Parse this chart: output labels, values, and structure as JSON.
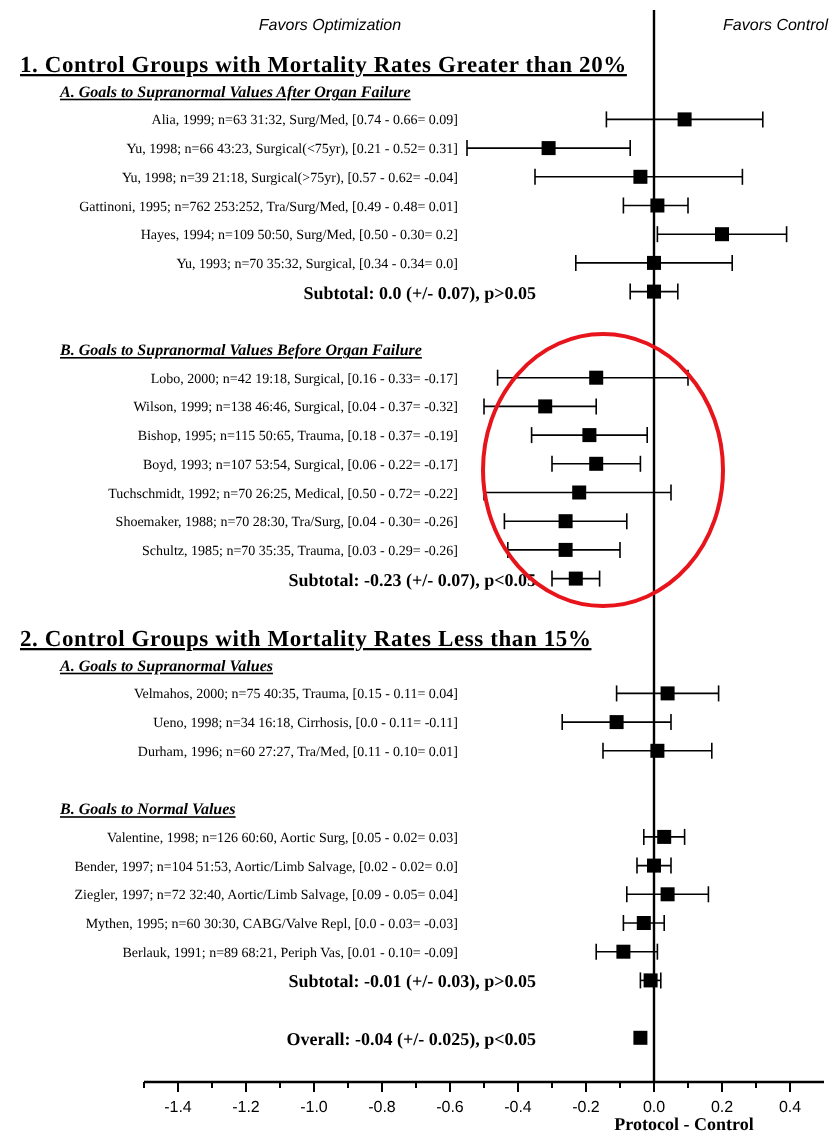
{
  "chart_data": {
    "type": "scatter",
    "orientation": "horizontal",
    "marker": "square",
    "annotations": [
      "Favors Optimization",
      "Favors Control"
    ],
    "xlabel": "Protocol - Control",
    "categories": [
      "1. Control Groups with Mortality Rates Greater than 20%",
      "A. Goals to Supranormal Values After Organ Failure",
      "Alia, 1999; n=63 31:32, Surg/Med, [0.74 - 0.66= 0.09]",
      "Yu, 1998; n=66 43:23, Surgical(<75yr), [0.21 - 0.52= 0.31]",
      "Yu, 1998; n=39 21:18, Surgical(>75yr), [0.57 - 0.62= -0.04]",
      "Gattinoni, 1995; n=762 253:252, Tra/Surg/Med, [0.49 - 0.48= 0.01]",
      "Hayes, 1994; n=109 50:50, Surg/Med, [0.50 - 0.30= 0.2]",
      "Yu, 1993; n=70 35:32, Surgical, [0.34 - 0.34= 0.0]",
      "Subtotal: 0.0 (+/- 0.07), p>0.05",
      null,
      "B. Goals to Supranormal Values Before Organ Failure",
      "Lobo, 2000; n=42 19:18, Surgical, [0.16 - 0.33= -0.17]",
      "Wilson, 1999; n=138 46:46, Surgical, [0.04 - 0.37= -0.32]",
      "Bishop, 1995; n=115 50:65, Trauma, [0.18 - 0.37= -0.19]",
      "Boyd, 1993; n=107 53:54, Surgical, [0.06 - 0.22= -0.17]",
      "Tuchschmidt, 1992; n=70 26:25, Medical, [0.50 - 0.72= -0.22]",
      "Shoemaker, 1988; n=70 28:30, Tra/Surg, [0.04 - 0.30= -0.26]",
      "Schultz, 1985; n=70 35:35, Trauma, [0.03 - 0.29= -0.26]",
      "Subtotal: -0.23 (+/- 0.07), p<0.05",
      null,
      "2. Control Groups with Mortality Rates Less than 15%",
      "A. Goals to Supranormal Values",
      "Velmahos, 2000; n=75 40:35, Trauma, [0.15 - 0.11= 0.04]",
      "Ueno, 1998; n=34 16:18, Cirrhosis, [0.0 - 0.11= -0.11]",
      "Durham, 1996; n=60 27:27, Tra/Med, [0.11 - 0.10= 0.01]",
      null,
      "B. Goals to Normal Values",
      "Valentine, 1998; n=126 60:60, Aortic Surg, [0.05 - 0.02= 0.03]",
      "Bender, 1997; n=104 51:53, Aortic/Limb Salvage, [0.02 - 0.02= 0.0]",
      "Ziegler, 1997; n=72 32:40, Aortic/Limb Salvage, [0.09 - 0.05= 0.04]",
      "Mythen, 1995; n=60 30:30, CABG/Valve Repl, [0.0 - 0.03= -0.03]",
      "Berlauk, 1991; n=89 68:21, Periph Vas, [0.01 - 0.10= -0.09]",
      "Subtotal: -0.01 (+/- 0.03), p>0.05",
      null,
      "Overall: -0.04 (+/- 0.025), p<0.05"
    ],
    "series": [
      {
        "color": "#000000",
        "values": [
          null,
          null,
          0.09,
          -0.31,
          -0.04,
          0.01,
          0.2,
          0.0,
          null,
          null,
          null,
          -0.17,
          -0.32,
          -0.19,
          -0.17,
          -0.22,
          -0.26,
          -0.26,
          null,
          null,
          null,
          null,
          0.04,
          -0.11,
          0.01,
          null,
          null,
          0.03,
          0.0,
          0.04,
          -0.03,
          -0.09,
          null,
          null,
          null
        ],
        "errors": [
          null,
          null,
          [
            -0.14,
            0.32
          ],
          [
            -0.55,
            -0.07
          ],
          [
            -0.35,
            0.26
          ],
          [
            -0.09,
            0.1
          ],
          [
            0.01,
            0.39
          ],
          [
            -0.23,
            0.23
          ],
          null,
          null,
          null,
          [
            -0.46,
            0.1
          ],
          [
            -0.5,
            -0.17
          ],
          [
            -0.36,
            -0.02
          ],
          [
            -0.3,
            -0.04
          ],
          [
            -0.5,
            0.05
          ],
          [
            -0.44,
            -0.08
          ],
          [
            -0.43,
            -0.1
          ],
          null,
          null,
          null,
          null,
          [
            -0.11,
            0.19
          ],
          [
            -0.27,
            0.05
          ],
          [
            -0.15,
            0.17
          ],
          null,
          null,
          [
            -0.03,
            0.09
          ],
          [
            -0.05,
            0.05
          ],
          [
            -0.08,
            0.16
          ],
          [
            -0.09,
            0.03
          ],
          [
            -0.17,
            0.01
          ],
          null,
          null,
          null
        ]
      },
      {
        "color": "#000000",
        "values": [
          null,
          null,
          null,
          null,
          null,
          null,
          null,
          null,
          0.0,
          null,
          null,
          null,
          null,
          null,
          null,
          null,
          null,
          null,
          -0.23,
          null,
          null,
          null,
          null,
          null,
          null,
          null,
          null,
          null,
          null,
          null,
          null,
          null,
          -0.01,
          null,
          -0.04
        ],
        "errors": [
          null,
          null,
          null,
          null,
          null,
          null,
          null,
          null,
          0.07,
          null,
          null,
          null,
          null,
          null,
          null,
          null,
          null,
          null,
          0.07,
          null,
          null,
          null,
          null,
          null,
          null,
          null,
          null,
          null,
          null,
          null,
          null,
          null,
          0.03,
          null,
          null
        ]
      }
    ],
    "xlim": [
      -1.5,
      0.5
    ],
    "xticks": [
      {
        "value": -1.5,
        "label": null
      },
      {
        "value": -1.4,
        "label": "-1.4"
      },
      {
        "value": -1.3,
        "label": null
      },
      {
        "value": -1.2,
        "label": "-1.2"
      },
      {
        "value": -1.1,
        "label": null
      },
      {
        "value": -1.0,
        "label": "-1.0"
      },
      {
        "value": -0.9,
        "label": null
      },
      {
        "value": -0.8,
        "label": "-0.8"
      },
      {
        "value": -0.7,
        "label": null
      },
      {
        "value": -0.6,
        "label": "-0.6"
      },
      {
        "value": -0.5,
        "label": null
      },
      {
        "value": -0.4,
        "label": "-0.4"
      },
      {
        "value": -0.3,
        "label": null
      },
      {
        "value": -0.2,
        "label": "-0.2"
      },
      {
        "value": -0.1,
        "label": null
      },
      {
        "value": 0,
        "label": "0.0"
      },
      {
        "value": 0.1,
        "label": null
      },
      {
        "value": 0.2,
        "label": "0.2"
      },
      {
        "value": 0.3,
        "label": null
      },
      {
        "value": 0.4,
        "label": "0.4"
      }
    ],
    "ref_lines": [
      {
        "axis": "x",
        "value": 0,
        "color": "#000000"
      }
    ]
  }
}
